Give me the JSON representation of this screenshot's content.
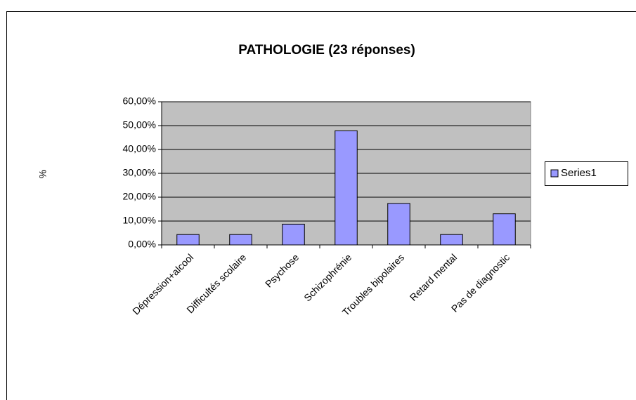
{
  "chart_data": {
    "type": "bar",
    "title": "PATHOLOGIE (23 réponses)",
    "y_label": "%",
    "categories": [
      "Dépression+alcool",
      "Difficultés scolaire",
      "Psychose",
      "Schizophrénie",
      "Troubles bipolaires",
      "Retard mental",
      "Pas de diagnostic"
    ],
    "series": [
      {
        "name": "Series1",
        "color": "#9999ff",
        "values": [
          4.35,
          4.35,
          8.7,
          47.83,
          17.39,
          4.35,
          13.04
        ]
      }
    ],
    "ylim": [
      0,
      60
    ],
    "yticks": [
      {
        "value": 0,
        "label": "0,00%"
      },
      {
        "value": 10,
        "label": "10,00%"
      },
      {
        "value": 20,
        "label": "20,00%"
      },
      {
        "value": 30,
        "label": "30,00%"
      },
      {
        "value": 40,
        "label": "40,00%"
      },
      {
        "value": 50,
        "label": "50,00%"
      },
      {
        "value": 60,
        "label": "60,00%"
      }
    ],
    "grid": true,
    "legend": "right"
  }
}
